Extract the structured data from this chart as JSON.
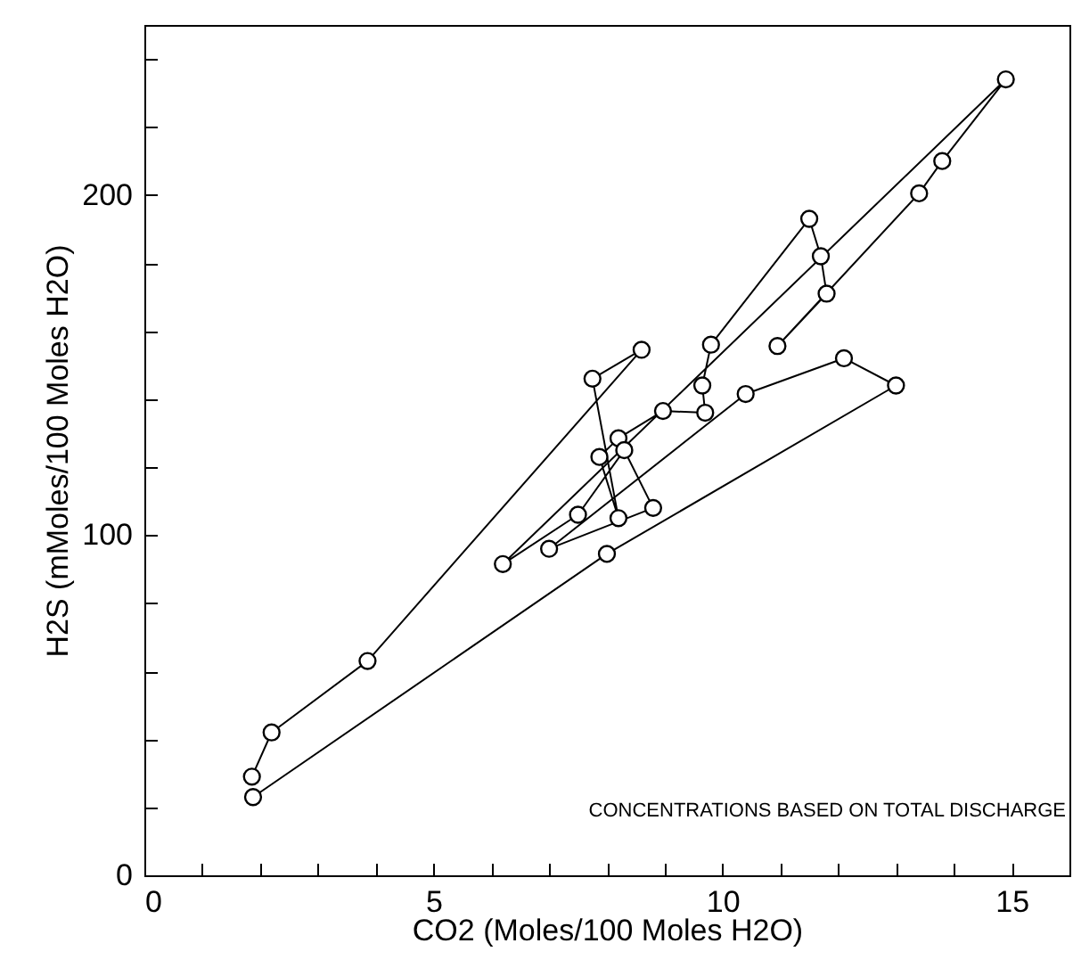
{
  "chart_data": {
    "type": "line",
    "xlabel": "CO2 (Moles/100 Moles H2O)",
    "ylabel": "H2S (mMoles/100 Moles H2O)",
    "annotations": [
      "CONCENTRATIONS BASED ON TOTAL DISCHARGE"
    ],
    "marker": "circle",
    "line_style": "solid",
    "grid": false,
    "xlim": [
      0,
      16
    ],
    "ylim": [
      0,
      250
    ],
    "xticks": [
      0,
      {
        "value": 1,
        "label": null
      },
      {
        "value": 2,
        "label": null
      },
      {
        "value": 3,
        "label": null
      },
      {
        "value": 4,
        "label": null
      },
      5,
      {
        "value": 6,
        "label": null
      },
      {
        "value": 7,
        "label": null
      },
      {
        "value": 8,
        "label": null
      },
      {
        "value": 9,
        "label": null
      },
      10,
      {
        "value": 11,
        "label": null
      },
      {
        "value": 12,
        "label": null
      },
      {
        "value": 13,
        "label": null
      },
      {
        "value": 14,
        "label": null
      },
      15,
      {
        "value": 16,
        "label": null
      }
    ],
    "yticks": [
      0,
      {
        "value": 20,
        "label": null
      },
      {
        "value": 40,
        "label": null
      },
      {
        "value": 60,
        "label": null
      },
      {
        "value": 80,
        "label": null
      },
      100,
      {
        "value": 120,
        "label": null
      },
      {
        "value": 140,
        "label": null
      },
      {
        "value": 160,
        "label": null
      },
      {
        "value": 180,
        "label": null
      },
      200,
      {
        "value": 220,
        "label": null
      },
      {
        "value": 240,
        "label": null
      }
    ],
    "series": [
      {
        "color": "#000000",
        "x": [
          1.86,
          2.2,
          3.86,
          8.6,
          7.75,
          8.2,
          7.87,
          8.2,
          8.97,
          9.7,
          9.65,
          9.8,
          11.5,
          11.7,
          11.8,
          10.95,
          13.4,
          13.8,
          14.9,
          6.2,
          7.5,
          8.3,
          8.8,
          7.0,
          10.4,
          12.1,
          13.0,
          8.0,
          1.88
        ],
        "values": [
          29,
          42,
          63,
          154.5,
          146,
          105,
          123,
          128.5,
          136.5,
          136,
          144,
          156,
          193,
          182,
          171,
          155.6,
          200.5,
          210,
          234,
          91.5,
          106,
          125,
          108,
          96,
          141.5,
          152,
          144,
          94.5,
          23
        ]
      }
    ]
  }
}
